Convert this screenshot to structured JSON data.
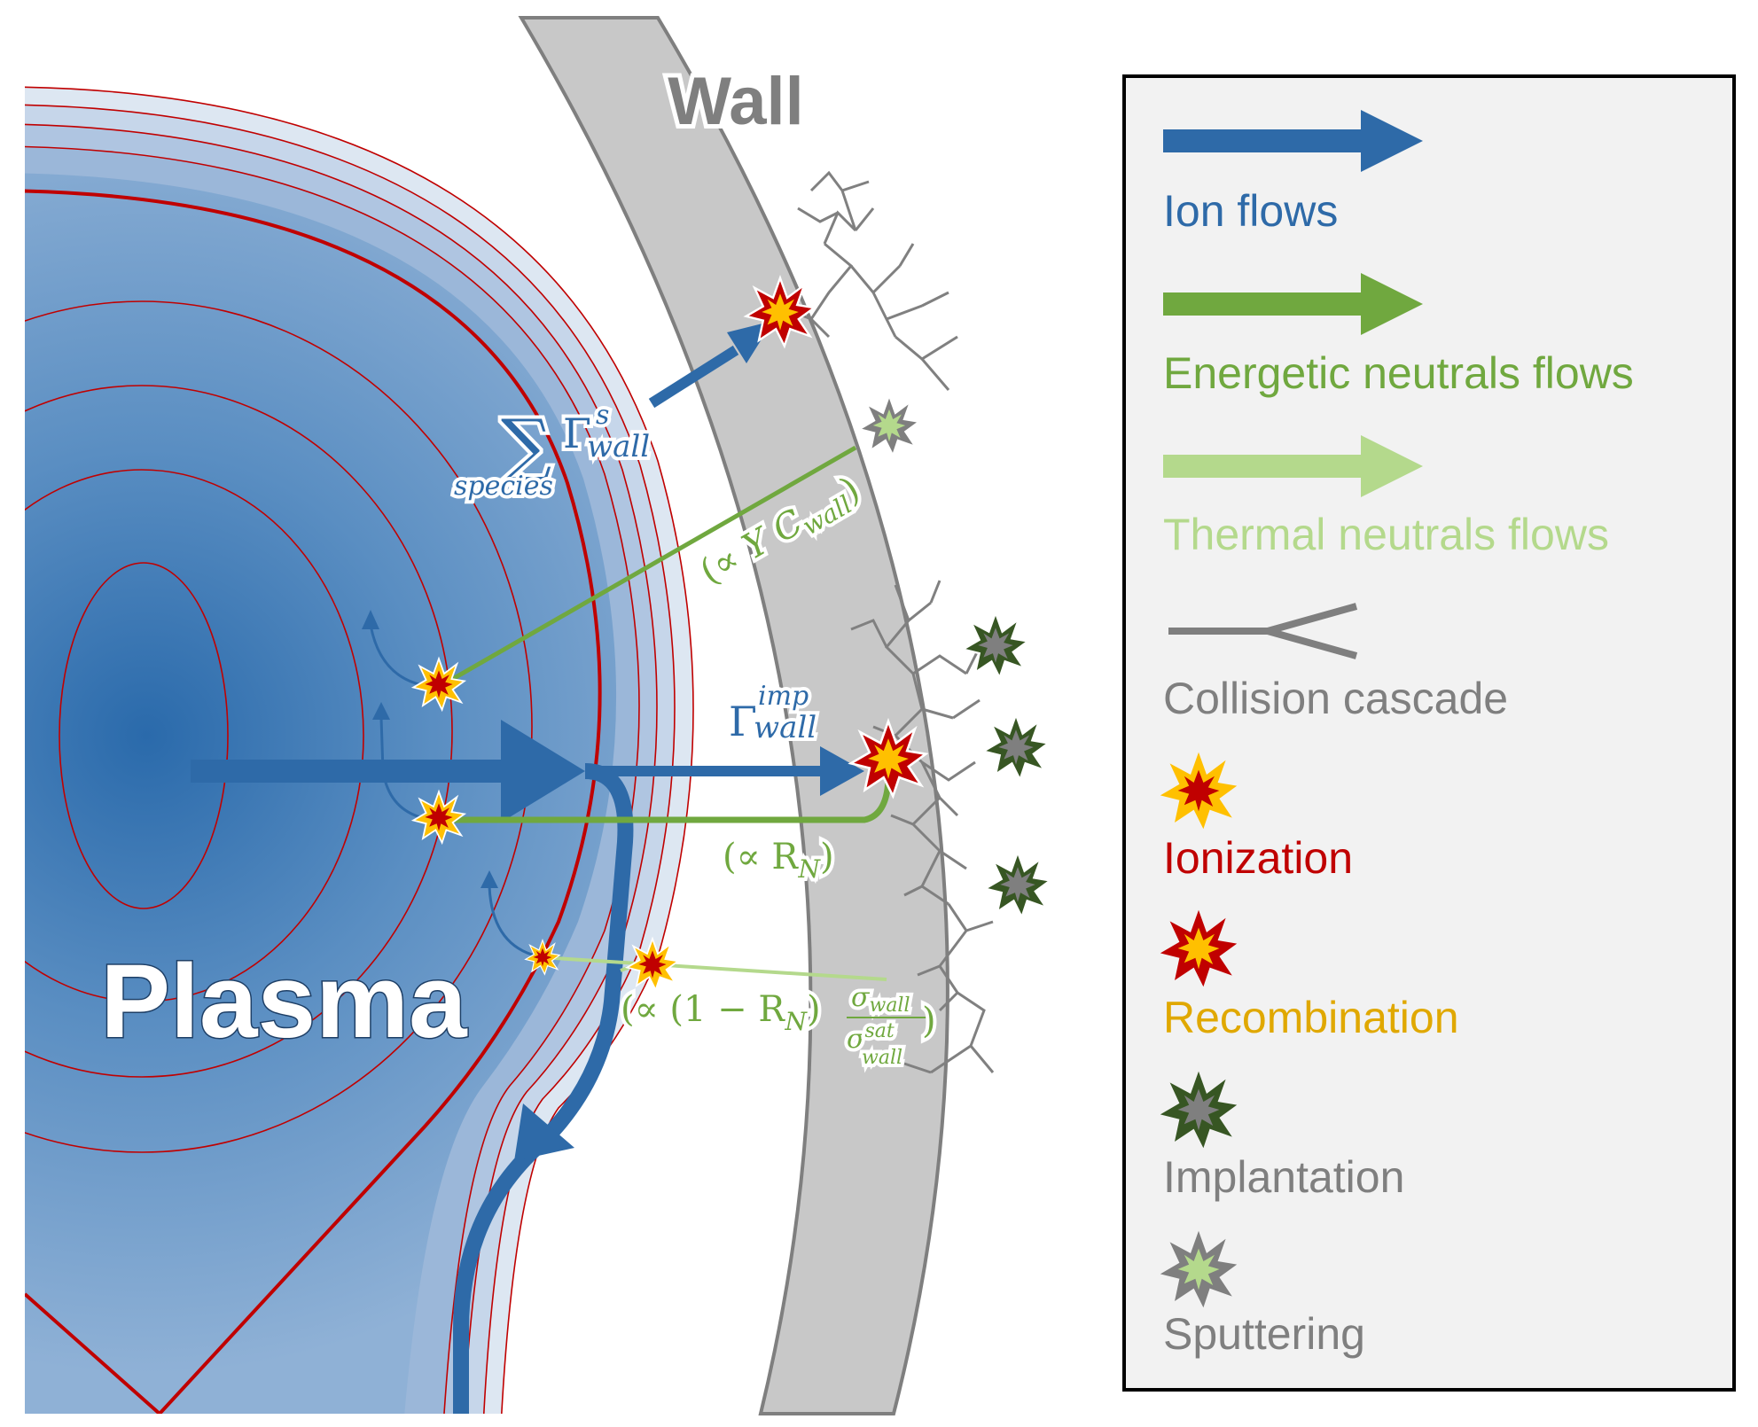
{
  "labels": {
    "wall": "Wall",
    "plasma": "Plasma"
  },
  "annotations": {
    "sum_symbol": "∑",
    "sum_gamma": "Γ",
    "sum_sup": "s",
    "sum_sub": "wall",
    "sum_under": "species",
    "imp_gamma": "Γ",
    "imp_sup": "imp",
    "imp_sub": "wall",
    "ycwall_open": "(∝ ",
    "ycwall_Y": "Y",
    "ycwall_C": "C",
    "ycwall_sub": "wall",
    "ycwall_close": ")",
    "rn_text": "(∝ R",
    "rn_sub": "N",
    "rn_close": ")",
    "frac_prefix": "(∝ (1 − R",
    "frac_sub": "N",
    "frac_close": ")",
    "frac_num": "σ",
    "frac_num_sub": "wall",
    "frac_den": "σ",
    "frac_den_sup": "sat",
    "frac_den_sub": "wall",
    "frac_end": ")"
  },
  "legend": {
    "items": [
      {
        "label": "Ion flows",
        "color": "#2e6aa8",
        "icon": "blue-arrow-icon"
      },
      {
        "label": "Energetic neutrals flows",
        "color": "#70a83f",
        "icon": "green-arrow-icon"
      },
      {
        "label": "Thermal neutrals flows",
        "color": "#b4d98c",
        "icon": "light-green-arrow-icon"
      },
      {
        "label": "Collision cascade",
        "color": "#7f7f7f",
        "icon": "collision-cascade-icon"
      },
      {
        "label": "Ionization",
        "color": "#c00000",
        "icon": "ionization-star-icon"
      },
      {
        "label": "Recombination",
        "color": "#e0a800",
        "icon": "recombination-star-icon"
      },
      {
        "label": "Implantation",
        "color": "#7f7f7f",
        "icon": "implantation-star-icon"
      },
      {
        "label": "Sputtering",
        "color": "#7f7f7f",
        "icon": "sputtering-star-icon"
      }
    ]
  },
  "colors": {
    "ion": "#2e6aa8",
    "energetic": "#70a83f",
    "thermal": "#b4d98c",
    "wall_fill": "#c8c8c8",
    "wall_stroke": "#7f7f7f",
    "flux_surface": "#c00000",
    "plasma_core": "#2a6aaa"
  }
}
